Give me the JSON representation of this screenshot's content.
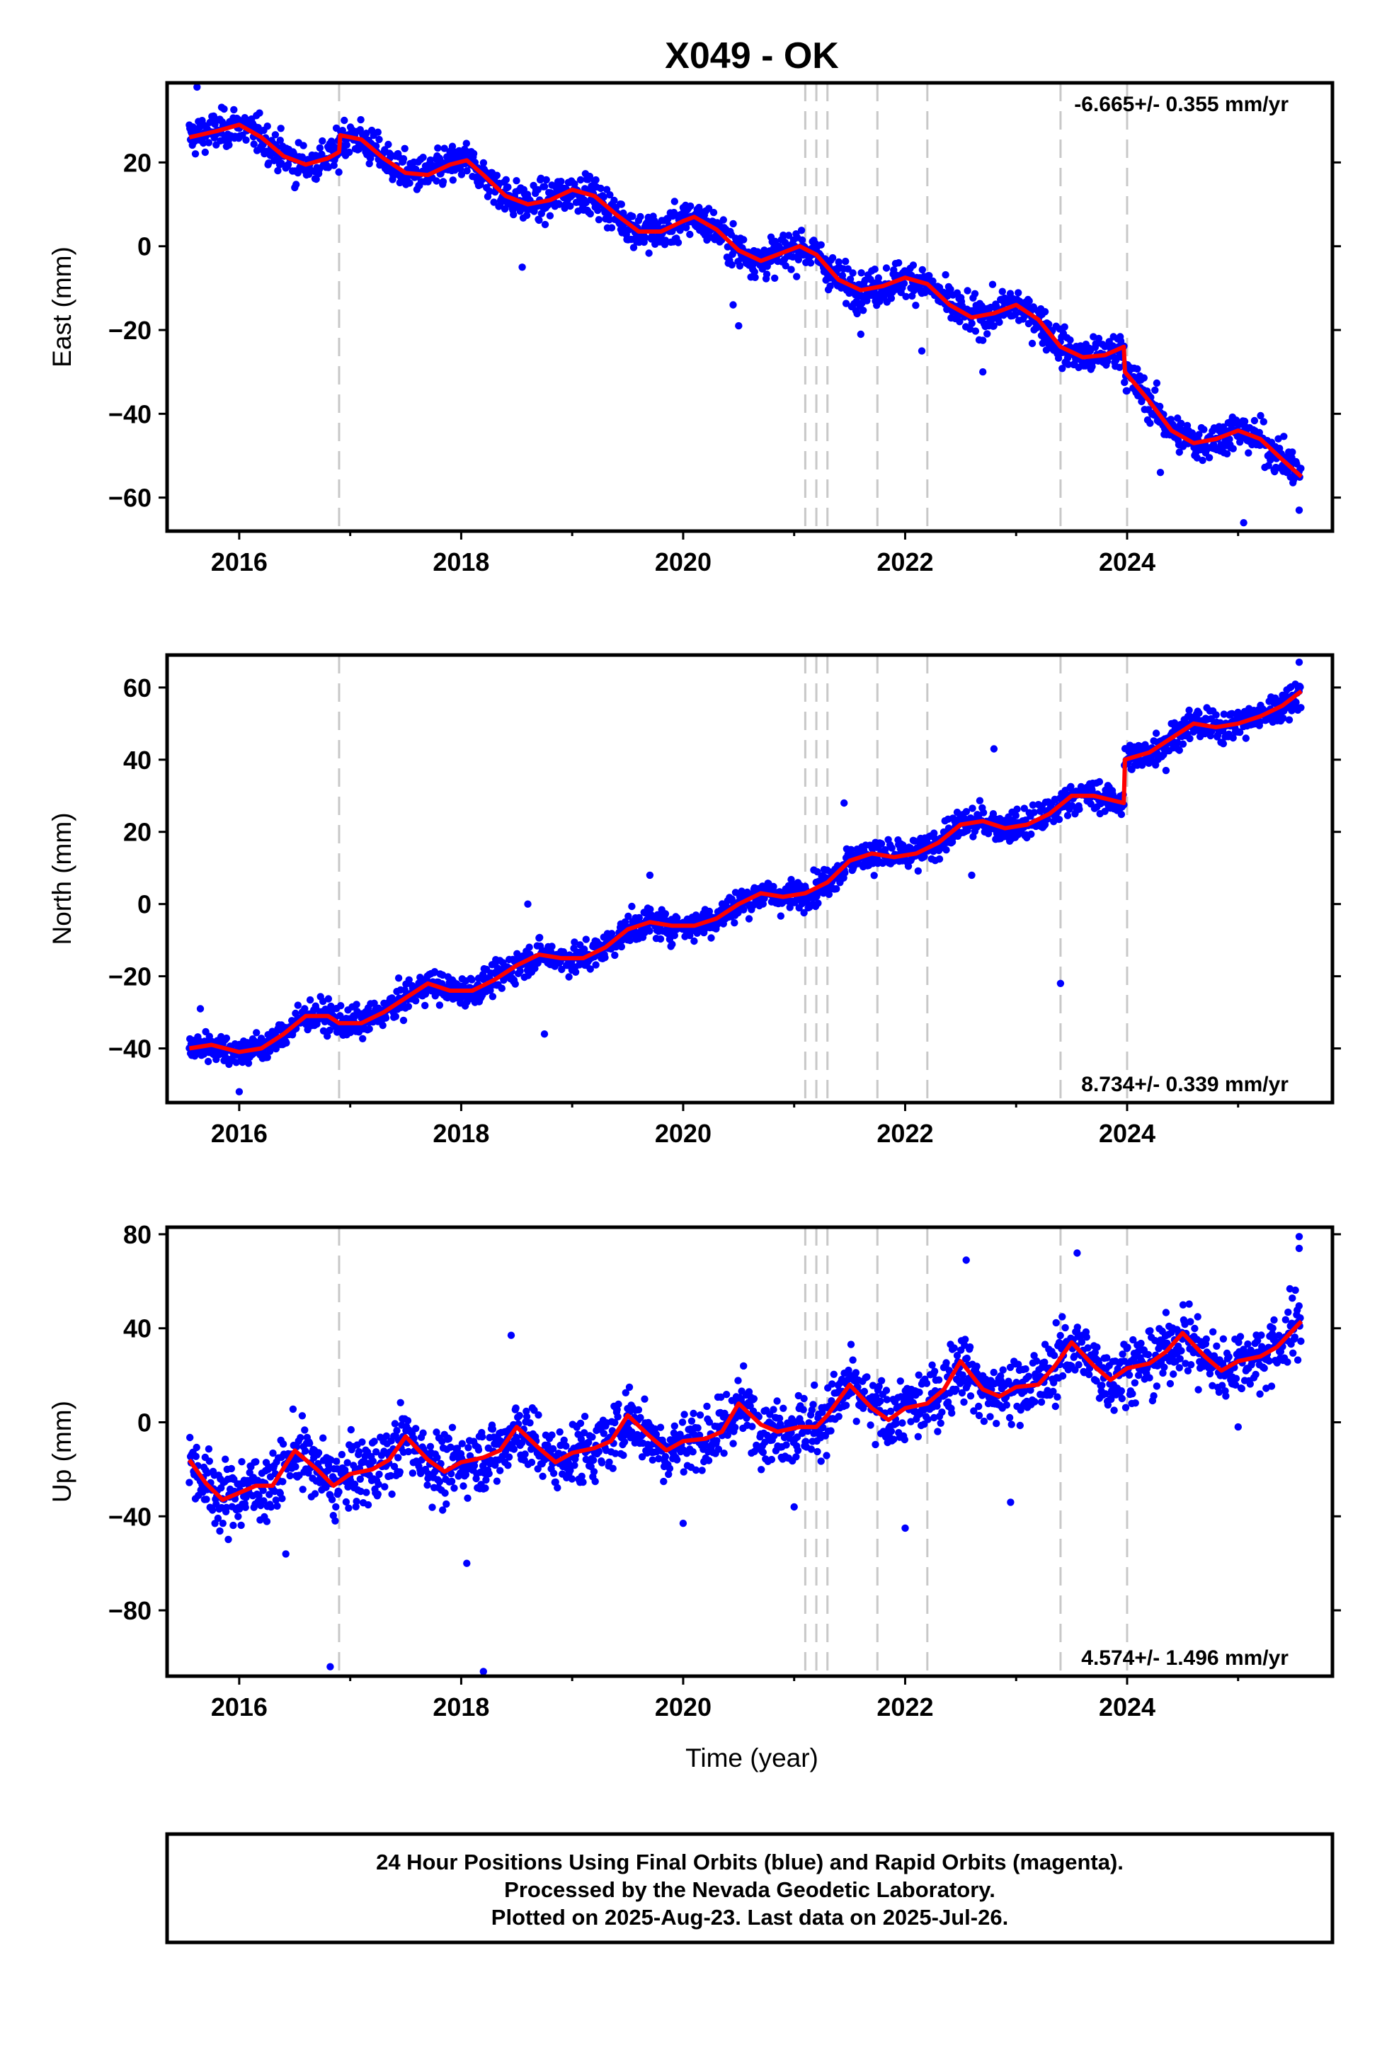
{
  "title": "X049 - OK",
  "xlabel": "Time (year)",
  "footer": {
    "line1": "24 Hour Positions Using Final Orbits (blue) and Rapid Orbits (magenta).",
    "line2": "Processed by the Nevada Geodetic Laboratory.",
    "line3": "Plotted on 2025-Aug-23. Last data on 2025-Jul-26."
  },
  "colors": {
    "points": "#0000ff",
    "model": "#ff0000",
    "event_lines": "#c8c8c8",
    "frame": "#000000"
  },
  "chart_data": [
    {
      "type": "scatter",
      "component": "east",
      "ylabel": "East (mm)",
      "rate_text": "-6.665+/- 0.355 mm/yr",
      "rate_position": "top-right",
      "xlim": [
        2015.35,
        2025.85
      ],
      "ylim": [
        -68,
        39
      ],
      "xticks": [
        2016,
        2018,
        2020,
        2022,
        2024
      ],
      "yticks": [
        20,
        0,
        -20,
        -40,
        -60
      ],
      "model_points": [
        [
          2015.55,
          26
        ],
        [
          2015.8,
          27.5
        ],
        [
          2016.0,
          29
        ],
        [
          2016.2,
          26
        ],
        [
          2016.4,
          21.5
        ],
        [
          2016.6,
          19.5
        ],
        [
          2016.8,
          21
        ],
        [
          2016.9,
          22.5
        ],
        [
          2016.91,
          26.5
        ],
        [
          2017.1,
          25.5
        ],
        [
          2017.3,
          21
        ],
        [
          2017.5,
          17.5
        ],
        [
          2017.7,
          17
        ],
        [
          2017.9,
          19.5
        ],
        [
          2018.05,
          20.5
        ],
        [
          2018.2,
          17
        ],
        [
          2018.4,
          12
        ],
        [
          2018.6,
          10
        ],
        [
          2018.8,
          11
        ],
        [
          2019.0,
          13.5
        ],
        [
          2019.2,
          12
        ],
        [
          2019.4,
          7.5
        ],
        [
          2019.6,
          3.5
        ],
        [
          2019.8,
          3.5
        ],
        [
          2020.0,
          6
        ],
        [
          2020.1,
          7
        ],
        [
          2020.3,
          4
        ],
        [
          2020.5,
          -1
        ],
        [
          2020.7,
          -3.5
        ],
        [
          2020.9,
          -1.5
        ],
        [
          2021.05,
          0
        ],
        [
          2021.2,
          -2
        ],
        [
          2021.4,
          -8
        ],
        [
          2021.6,
          -10.5
        ],
        [
          2021.8,
          -9.5
        ],
        [
          2022.0,
          -7.5
        ],
        [
          2022.2,
          -9
        ],
        [
          2022.4,
          -14
        ],
        [
          2022.6,
          -17
        ],
        [
          2022.8,
          -16
        ],
        [
          2023.0,
          -14
        ],
        [
          2023.2,
          -17.5
        ],
        [
          2023.4,
          -24
        ],
        [
          2023.6,
          -26.5
        ],
        [
          2023.8,
          -26
        ],
        [
          2023.97,
          -24
        ],
        [
          2023.98,
          -30
        ],
        [
          2024.2,
          -37
        ],
        [
          2024.4,
          -44
        ],
        [
          2024.6,
          -47
        ],
        [
          2024.8,
          -46
        ],
        [
          2025.0,
          -44
        ],
        [
          2025.2,
          -46
        ],
        [
          2025.4,
          -51
        ],
        [
          2025.57,
          -55
        ]
      ],
      "point_noise": 2.2,
      "outliers": [
        [
          2015.62,
          38
        ],
        [
          2016.5,
          14
        ],
        [
          2018.55,
          -5
        ],
        [
          2020.45,
          -14
        ],
        [
          2020.5,
          -19
        ],
        [
          2021.6,
          -21
        ],
        [
          2022.15,
          -25
        ],
        [
          2022.7,
          -30
        ],
        [
          2024.3,
          -54
        ],
        [
          2025.05,
          -66
        ],
        [
          2025.55,
          -63
        ]
      ],
      "events": [
        2016.9,
        2021.1,
        2021.2,
        2021.3,
        2021.75,
        2022.2,
        2023.4,
        2024.0
      ]
    },
    {
      "type": "scatter",
      "component": "north",
      "ylabel": "North (mm)",
      "rate_text": "8.734+/- 0.339 mm/yr",
      "rate_position": "bottom-right",
      "xlim": [
        2015.35,
        2025.85
      ],
      "ylim": [
        -55,
        69
      ],
      "xticks": [
        2016,
        2018,
        2020,
        2022,
        2024
      ],
      "yticks": [
        60,
        40,
        20,
        0,
        -20,
        -40
      ],
      "model_points": [
        [
          2015.55,
          -40
        ],
        [
          2015.75,
          -39
        ],
        [
          2016.0,
          -41
        ],
        [
          2016.2,
          -40
        ],
        [
          2016.4,
          -36
        ],
        [
          2016.6,
          -31
        ],
        [
          2016.8,
          -31
        ],
        [
          2016.9,
          -33
        ],
        [
          2017.1,
          -33
        ],
        [
          2017.3,
          -30
        ],
        [
          2017.5,
          -26
        ],
        [
          2017.7,
          -22
        ],
        [
          2017.9,
          -24
        ],
        [
          2018.1,
          -24
        ],
        [
          2018.3,
          -21
        ],
        [
          2018.5,
          -17
        ],
        [
          2018.7,
          -14
        ],
        [
          2018.9,
          -15
        ],
        [
          2019.1,
          -15
        ],
        [
          2019.3,
          -12
        ],
        [
          2019.5,
          -7
        ],
        [
          2019.7,
          -5
        ],
        [
          2019.9,
          -6
        ],
        [
          2020.1,
          -6
        ],
        [
          2020.3,
          -4
        ],
        [
          2020.5,
          0
        ],
        [
          2020.7,
          3
        ],
        [
          2020.9,
          2
        ],
        [
          2021.1,
          3
        ],
        [
          2021.3,
          6
        ],
        [
          2021.5,
          12
        ],
        [
          2021.7,
          14
        ],
        [
          2021.9,
          13
        ],
        [
          2022.1,
          14
        ],
        [
          2022.3,
          17
        ],
        [
          2022.5,
          22
        ],
        [
          2022.7,
          23
        ],
        [
          2022.9,
          21
        ],
        [
          2023.1,
          22
        ],
        [
          2023.3,
          25
        ],
        [
          2023.5,
          30
        ],
        [
          2023.7,
          30
        ],
        [
          2023.97,
          28
        ],
        [
          2023.98,
          40
        ],
        [
          2024.2,
          42
        ],
        [
          2024.4,
          46
        ],
        [
          2024.6,
          50
        ],
        [
          2024.8,
          49
        ],
        [
          2025.0,
          50
        ],
        [
          2025.2,
          52
        ],
        [
          2025.4,
          55
        ],
        [
          2025.57,
          59
        ]
      ],
      "point_noise": 2.1,
      "outliers": [
        [
          2015.65,
          -29
        ],
        [
          2016.0,
          -52
        ],
        [
          2018.6,
          0
        ],
        [
          2018.75,
          -36
        ],
        [
          2019.7,
          8
        ],
        [
          2021.45,
          28
        ],
        [
          2022.6,
          8
        ],
        [
          2022.8,
          43
        ],
        [
          2023.4,
          -22
        ],
        [
          2024.35,
          37
        ],
        [
          2025.55,
          67
        ]
      ],
      "events": [
        2016.9,
        2021.1,
        2021.2,
        2021.3,
        2021.75,
        2022.2,
        2023.4,
        2024.0
      ]
    },
    {
      "type": "scatter",
      "component": "up",
      "ylabel": "Up (mm)",
      "rate_text": "4.574+/- 1.496 mm/yr",
      "rate_position": "bottom-right",
      "xlim": [
        2015.35,
        2025.85
      ],
      "ylim": [
        -108,
        83
      ],
      "xticks": [
        2016,
        2018,
        2020,
        2022,
        2024
      ],
      "yticks": [
        80,
        40,
        0,
        -40,
        -80
      ],
      "model_points": [
        [
          2015.55,
          -16
        ],
        [
          2015.7,
          -26
        ],
        [
          2015.85,
          -33
        ],
        [
          2016.0,
          -30
        ],
        [
          2016.15,
          -27
        ],
        [
          2016.3,
          -27
        ],
        [
          2016.5,
          -12
        ],
        [
          2016.7,
          -20
        ],
        [
          2016.85,
          -27
        ],
        [
          2017.0,
          -22
        ],
        [
          2017.2,
          -20
        ],
        [
          2017.35,
          -16
        ],
        [
          2017.5,
          -6
        ],
        [
          2017.7,
          -16
        ],
        [
          2017.85,
          -21
        ],
        [
          2018.0,
          -17
        ],
        [
          2018.2,
          -15
        ],
        [
          2018.35,
          -12
        ],
        [
          2018.5,
          -2
        ],
        [
          2018.7,
          -11
        ],
        [
          2018.85,
          -17
        ],
        [
          2019.0,
          -13
        ],
        [
          2019.2,
          -11
        ],
        [
          2019.35,
          -8
        ],
        [
          2019.5,
          3
        ],
        [
          2019.7,
          -6
        ],
        [
          2019.85,
          -12
        ],
        [
          2020.0,
          -8
        ],
        [
          2020.2,
          -7
        ],
        [
          2020.35,
          -4
        ],
        [
          2020.5,
          8
        ],
        [
          2020.7,
          -1
        ],
        [
          2020.85,
          -4
        ],
        [
          2021.05,
          -2
        ],
        [
          2021.2,
          -2
        ],
        [
          2021.3,
          3
        ],
        [
          2021.5,
          16
        ],
        [
          2021.7,
          6
        ],
        [
          2021.85,
          1
        ],
        [
          2022.0,
          6
        ],
        [
          2022.2,
          8
        ],
        [
          2022.35,
          14
        ],
        [
          2022.5,
          26
        ],
        [
          2022.7,
          14
        ],
        [
          2022.85,
          11
        ],
        [
          2023.0,
          15
        ],
        [
          2023.2,
          16
        ],
        [
          2023.35,
          24
        ],
        [
          2023.5,
          34
        ],
        [
          2023.7,
          24
        ],
        [
          2023.85,
          18
        ],
        [
          2024.0,
          23
        ],
        [
          2024.2,
          25
        ],
        [
          2024.35,
          30
        ],
        [
          2024.5,
          38
        ],
        [
          2024.7,
          28
        ],
        [
          2024.85,
          22
        ],
        [
          2025.0,
          26
        ],
        [
          2025.2,
          28
        ],
        [
          2025.35,
          32
        ],
        [
          2025.57,
          43
        ]
      ],
      "point_noise": 7,
      "outliers": [
        [
          2016.42,
          -56
        ],
        [
          2016.82,
          -104
        ],
        [
          2018.05,
          -60
        ],
        [
          2018.2,
          -106
        ],
        [
          2018.45,
          37
        ],
        [
          2020.0,
          -43
        ],
        [
          2021.0,
          -36
        ],
        [
          2022.0,
          -45
        ],
        [
          2022.55,
          69
        ],
        [
          2022.95,
          -34
        ],
        [
          2023.55,
          72
        ],
        [
          2025.0,
          -2
        ],
        [
          2025.55,
          79
        ],
        [
          2025.55,
          74
        ]
      ],
      "events": [
        2016.9,
        2021.1,
        2021.2,
        2021.3,
        2021.75,
        2022.2,
        2023.4,
        2024.0
      ]
    }
  ]
}
